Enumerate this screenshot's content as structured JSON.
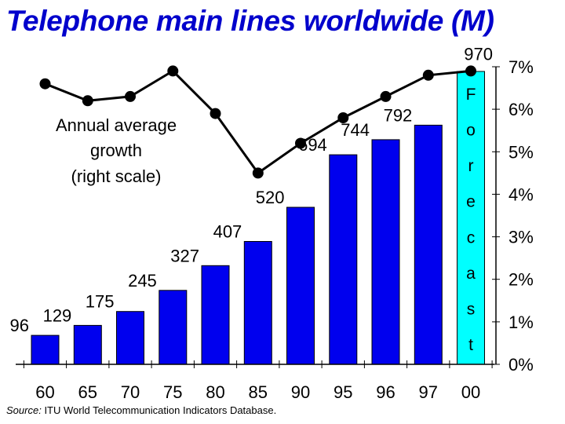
{
  "title": "Telephone main lines worldwide (M)",
  "source": {
    "label": "Source:",
    "text": "ITU World Telecommunication Indicators Database."
  },
  "annotation": [
    "Annual average",
    "growth",
    "(right scale)"
  ],
  "colors": {
    "title": "#0000cc",
    "bar": "#0000ee",
    "forecast_bar": "#00ffff",
    "line": "#000000",
    "axis": "#000000"
  },
  "chart_data": {
    "type": "bar",
    "categories": [
      "60",
      "65",
      "70",
      "75",
      "80",
      "85",
      "90",
      "95",
      "96",
      "97",
      "00"
    ],
    "series": [
      {
        "kind": "bar",
        "axis": "left",
        "values": [
          96,
          129,
          175,
          245,
          327,
          407,
          520,
          694,
          744,
          792,
          970
        ],
        "labels": [
          "96",
          "129",
          "175",
          "245",
          "327",
          "407",
          "520",
          "694",
          "744",
          "792",
          "970"
        ]
      },
      {
        "name": "Annual average growth (right scale)",
        "kind": "line",
        "axis": "right",
        "values": [
          6.6,
          6.2,
          6.3,
          6.9,
          5.9,
          4.5,
          5.2,
          5.8,
          6.3,
          6.8,
          6.9
        ]
      }
    ],
    "forecast": {
      "category": "00",
      "label_letters": [
        "F",
        "o",
        "r",
        "e",
        "c",
        "a",
        "s",
        "t"
      ]
    },
    "y_left": {
      "range": [
        0,
        970
      ],
      "ticks_shown": false
    },
    "y_right": {
      "range": [
        0,
        7
      ],
      "ticks": [
        0,
        1,
        2,
        3,
        4,
        5,
        6,
        7
      ],
      "tick_labels": [
        "0%",
        "1%",
        "2%",
        "3%",
        "4%",
        "5%",
        "6%",
        "7%"
      ]
    },
    "grid": false,
    "legend": "none"
  }
}
